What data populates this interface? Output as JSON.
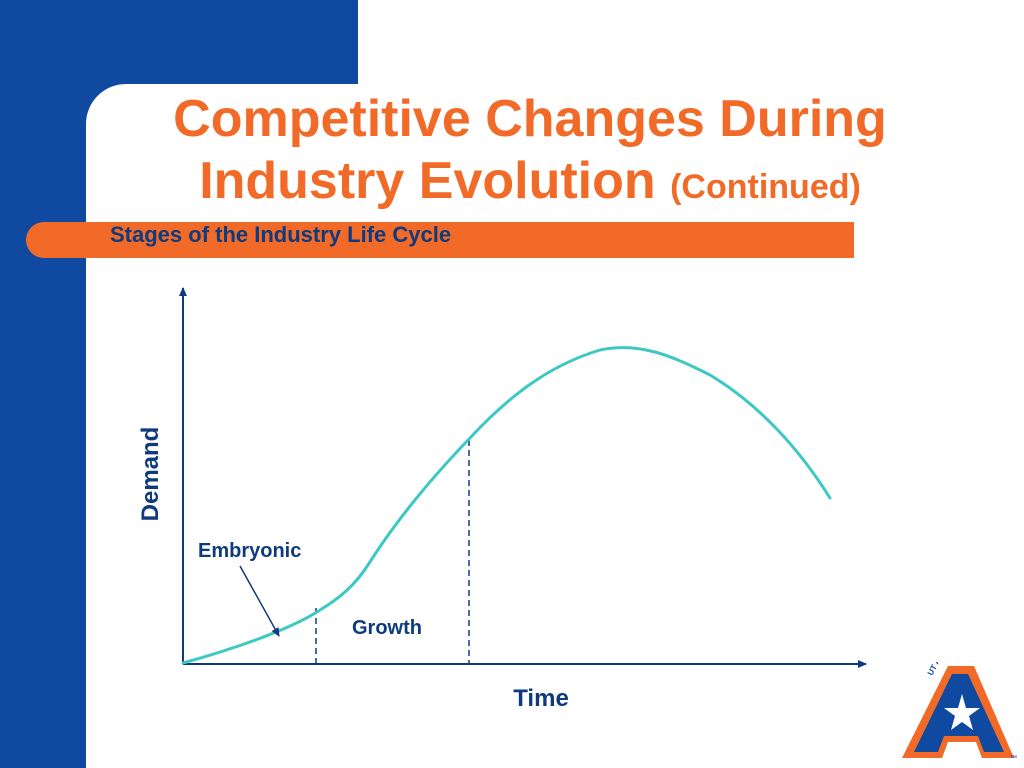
{
  "slide": {
    "title_main": "Competitive Changes During Industry Evolution",
    "title_suffix": "(Continued)",
    "subtitle": "Stages of the Industry Life Cycle"
  },
  "diagram": {
    "y_axis_label": "Demand",
    "x_axis_label": "Time",
    "stage_labels": {
      "embryonic": "Embryonic",
      "growth": "Growth"
    }
  },
  "logo": {
    "text": "UT ARLINGTON",
    "tm": "™"
  },
  "colors": {
    "blue": "#0f4aa0",
    "orange": "#f26a27",
    "navy": "#0f3a7d",
    "curve": "#3cc9c3"
  }
}
